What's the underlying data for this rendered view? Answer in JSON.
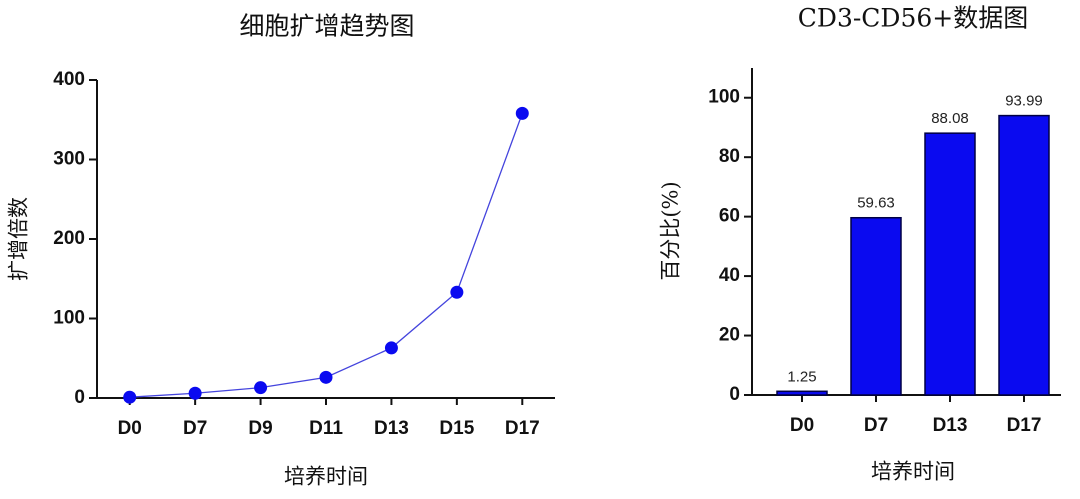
{
  "chart_data": [
    {
      "type": "line",
      "title": "细胞扩增趋势图",
      "x_label": "培养时间",
      "y_label": "扩增倍数",
      "categories": [
        "D0",
        "D7",
        "D9",
        "D11",
        "D13",
        "D15",
        "D17"
      ],
      "values": [
        1,
        6,
        13,
        26,
        63,
        133,
        358
      ],
      "color": "#0a0af0",
      "ylim": [
        0,
        400
      ],
      "yticks": [
        0,
        100,
        200,
        300,
        400
      ]
    },
    {
      "type": "bar",
      "title": "CD3-CD56+数据图",
      "x_label": "培养时间",
      "y_label": "百分比(%)",
      "categories": [
        "D0",
        "D7",
        "D13",
        "D17"
      ],
      "values": [
        1.25,
        59.63,
        88.08,
        93.99
      ],
      "color": "#0a0af0",
      "ylim": [
        0,
        110
      ],
      "yticks": [
        0,
        20,
        40,
        60,
        80,
        100
      ]
    }
  ]
}
